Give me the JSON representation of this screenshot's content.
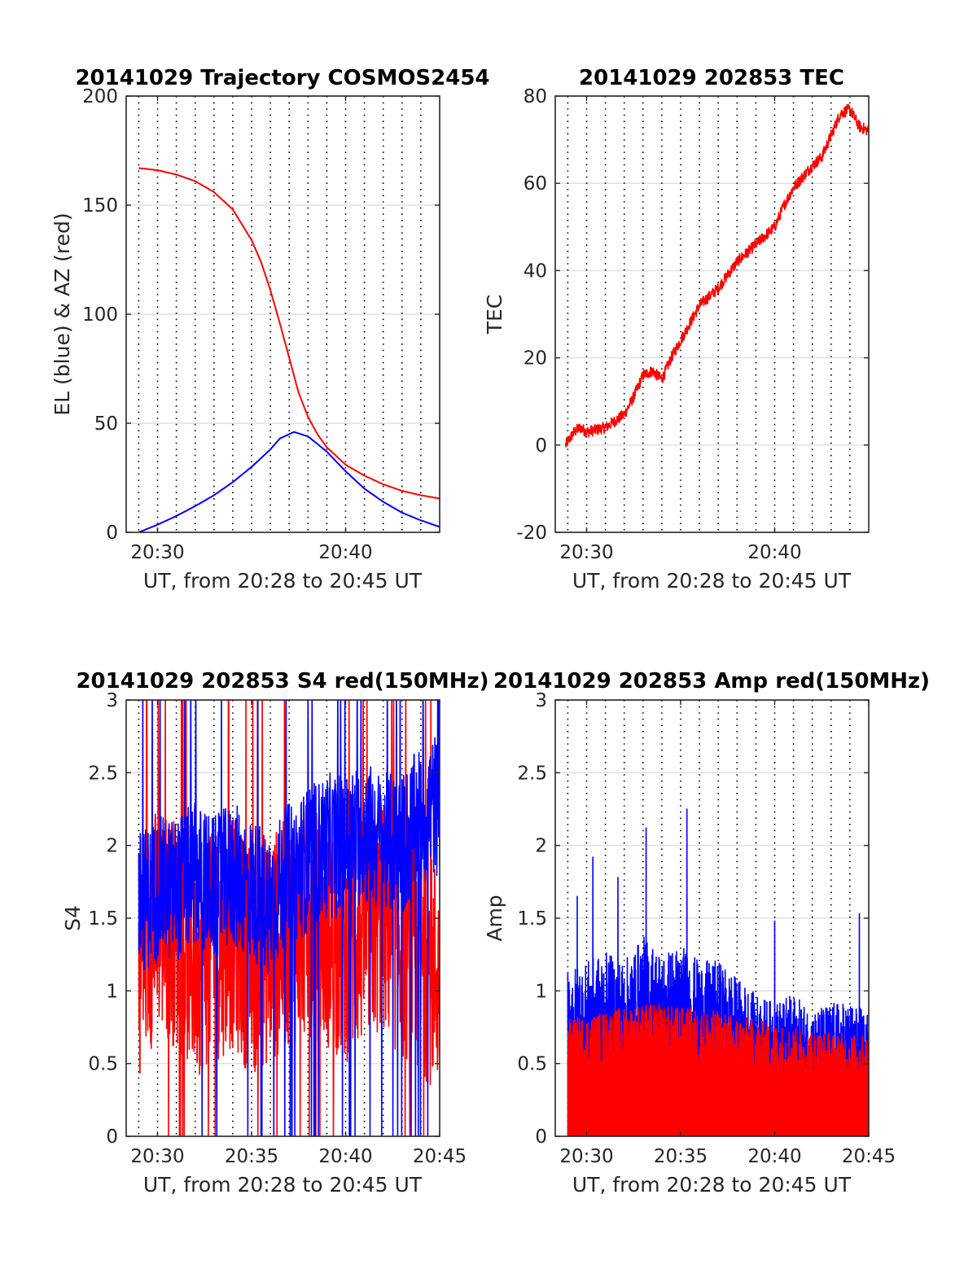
{
  "chart_data": [
    {
      "type": "line",
      "title": "20141029 Trajectory COSMOS2454",
      "xlabel": "UT, from 20:28 to 20:45 UT",
      "ylabel": "EL (blue) & AZ (red)",
      "xlim": [
        "20:28:20",
        "20:45:00"
      ],
      "ylim": [
        0,
        200
      ],
      "xticks": [
        "20:30",
        "20:40"
      ],
      "yticks": [
        "0",
        "50",
        "100",
        "150",
        "200"
      ],
      "grid": "x dotted, y solid light",
      "series": [
        {
          "color": "#ff0000",
          "x": [
            "20:29:00",
            "20:30:00",
            "20:31:00",
            "20:32:00",
            "20:33:00",
            "20:34:00",
            "20:35:00",
            "20:35:30",
            "20:36:00",
            "20:36:30",
            "20:37:00",
            "20:37:30",
            "20:38:00",
            "20:38:30",
            "20:39:00",
            "20:40:00",
            "20:41:00",
            "20:42:00",
            "20:43:00",
            "20:44:00",
            "20:45:00"
          ],
          "values": [
            167,
            166,
            164,
            161,
            156,
            148,
            134,
            124,
            111,
            96,
            80,
            64,
            53,
            45,
            39,
            31,
            26,
            22,
            19,
            17,
            15.5
          ]
        },
        {
          "color": "#0000ff",
          "x": [
            "20:29:00",
            "20:30:00",
            "20:31:00",
            "20:32:00",
            "20:33:00",
            "20:34:00",
            "20:35:00",
            "20:36:00",
            "20:36:30",
            "20:37:15",
            "20:38:00",
            "20:39:00",
            "20:40:00",
            "20:41:00",
            "20:42:00",
            "20:43:00",
            "20:44:00",
            "20:45:00"
          ],
          "values": [
            0,
            3.5,
            7.5,
            12,
            17,
            23,
            30,
            38,
            43,
            46,
            44,
            37,
            28,
            20,
            14,
            9,
            5.5,
            2.5
          ]
        }
      ]
    },
    {
      "type": "line",
      "title": "20141029 202853 TEC",
      "xlabel": "UT, from 20:28 to 20:45 UT",
      "ylabel": "TEC",
      "xlim": [
        "20:28:20",
        "20:45:00"
      ],
      "ylim": [
        -20,
        80
      ],
      "xticks": [
        "20:30",
        "20:40"
      ],
      "yticks": [
        "-20",
        "0",
        "20",
        "40",
        "60",
        "80"
      ],
      "grid": "x dotted, y solid light",
      "series": [
        {
          "color": "#ff0000",
          "x": [
            "20:28:53",
            "20:29:20",
            "20:29:40",
            "20:30:00",
            "20:31:00",
            "20:32:00",
            "20:32:30",
            "20:33:00",
            "20:33:30",
            "20:34:00",
            "20:34:30",
            "20:35:00",
            "20:35:30",
            "20:36:00",
            "20:37:00",
            "20:38:00",
            "20:39:00",
            "20:40:00",
            "20:40:30",
            "20:41:00",
            "20:42:00",
            "20:42:30",
            "20:43:00",
            "20:43:30",
            "20:44:00",
            "20:44:30",
            "20:45:00"
          ],
          "values": [
            0,
            3,
            4,
            3,
            4,
            7,
            11,
            16,
            17,
            15,
            20,
            24,
            28,
            32,
            36,
            42,
            46,
            50,
            55,
            59,
            64,
            66,
            71,
            76,
            77,
            73,
            72
          ]
        }
      ]
    },
    {
      "type": "line",
      "title": "20141029 202853 S4 red(150MHz)",
      "xlabel": "UT, from 20:28 to 20:45 UT",
      "ylabel": "S4",
      "xlim": [
        "20:28:20",
        "20:45:00"
      ],
      "ylim": [
        0,
        3
      ],
      "xticks": [
        "20:30",
        "20:35",
        "20:40",
        "20:45"
      ],
      "yticks": [
        "0",
        "0.5",
        "1",
        "1.5",
        "2",
        "2.5",
        "3"
      ],
      "grid": "x dotted, y solid light",
      "series": [
        {
          "color": "#ff0000",
          "x": [
            "20:29:00",
            "20:30:00",
            "20:31:00",
            "20:32:00",
            "20:33:00",
            "20:34:00",
            "20:35:00",
            "20:36:00",
            "20:37:00",
            "20:38:00",
            "20:39:00",
            "20:40:00",
            "20:41:00",
            "20:42:00",
            "20:43:00",
            "20:44:00",
            "20:45:00"
          ],
          "values": [
            1.2,
            1.5,
            1.4,
            1.2,
            1.3,
            1.4,
            1.2,
            1.3,
            1.4,
            1.5,
            1.4,
            1.3,
            1.4,
            1.5,
            1.3,
            1.2,
            1.1
          ]
        },
        {
          "color": "#0000ff",
          "x": [
            "20:29:00",
            "20:30:00",
            "20:31:00",
            "20:32:00",
            "20:33:00",
            "20:34:00",
            "20:35:00",
            "20:36:00",
            "20:37:00",
            "20:38:00",
            "20:39:00",
            "20:40:00",
            "20:41:00",
            "20:42:00",
            "20:43:00",
            "20:44:00",
            "20:45:00"
          ],
          "values": [
            1.6,
            1.7,
            1.7,
            1.8,
            1.7,
            1.8,
            1.7,
            1.6,
            1.8,
            1.9,
            2.0,
            2.0,
            2.1,
            2.0,
            2.0,
            2.2,
            2.3
          ]
        }
      ]
    },
    {
      "type": "line",
      "title": "20141029 202853 Amp red(150MHz)",
      "xlabel": "UT, from 20:28 to 20:45 UT",
      "ylabel": "Amp",
      "xlim": [
        "20:28:20",
        "20:45:00"
      ],
      "ylim": [
        0,
        3
      ],
      "xticks": [
        "20:30",
        "20:35",
        "20:40",
        "20:45"
      ],
      "yticks": [
        "0",
        "0.5",
        "1",
        "1.5",
        "2",
        "2.5",
        "3"
      ],
      "grid": "x dotted, y solid light",
      "series": [
        {
          "color": "#0000ff",
          "x": [
            "20:29:00",
            "20:30:00",
            "20:31:00",
            "20:32:00",
            "20:33:00",
            "20:34:00",
            "20:35:00",
            "20:36:00",
            "20:37:00",
            "20:38:00",
            "20:39:00",
            "20:40:00",
            "20:41:00",
            "20:42:00",
            "20:43:00",
            "20:44:00",
            "20:45:00"
          ],
          "values": [
            1.0,
            1.05,
            1.1,
            1.05,
            1.2,
            1.1,
            1.15,
            1.05,
            1.05,
            0.95,
            0.85,
            0.8,
            0.85,
            0.75,
            0.8,
            0.8,
            0.75
          ],
          "peaks": [
            {
              "x": "20:29:30",
              "value": 1.65
            },
            {
              "x": "20:30:20",
              "value": 1.92
            },
            {
              "x": "20:31:40",
              "value": 1.78
            },
            {
              "x": "20:33:10",
              "value": 2.12
            },
            {
              "x": "20:35:20",
              "value": 2.25
            },
            {
              "x": "20:40:00",
              "value": 1.48
            },
            {
              "x": "20:44:30",
              "value": 1.53
            }
          ]
        },
        {
          "color": "#ff0000",
          "x": [
            "20:29:00",
            "20:33:00",
            "20:37:00",
            "20:41:00",
            "20:45:00"
          ],
          "values": [
            0.7,
            0.8,
            0.75,
            0.65,
            0.6
          ]
        }
      ]
    }
  ]
}
